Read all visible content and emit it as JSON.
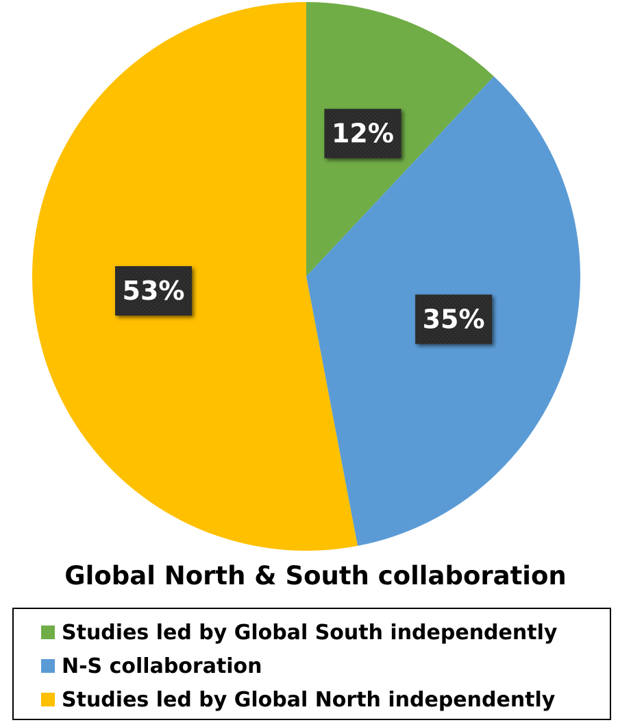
{
  "chart_data": {
    "type": "pie",
    "title": "Global North & South collaboration",
    "start_angle_deg": 0,
    "direction": "clockwise",
    "legend_position": "bottom",
    "slices": [
      {
        "name": "Studies led by Global South independently",
        "value": 12,
        "label": "12%",
        "color": "#70AD47"
      },
      {
        "name": "N-S collaboration",
        "value": 35,
        "label": "35%",
        "color": "#5B9BD5"
      },
      {
        "name": "Studies led by Global North independently",
        "value": 53,
        "label": "53%",
        "color": "#FFC000"
      }
    ]
  }
}
